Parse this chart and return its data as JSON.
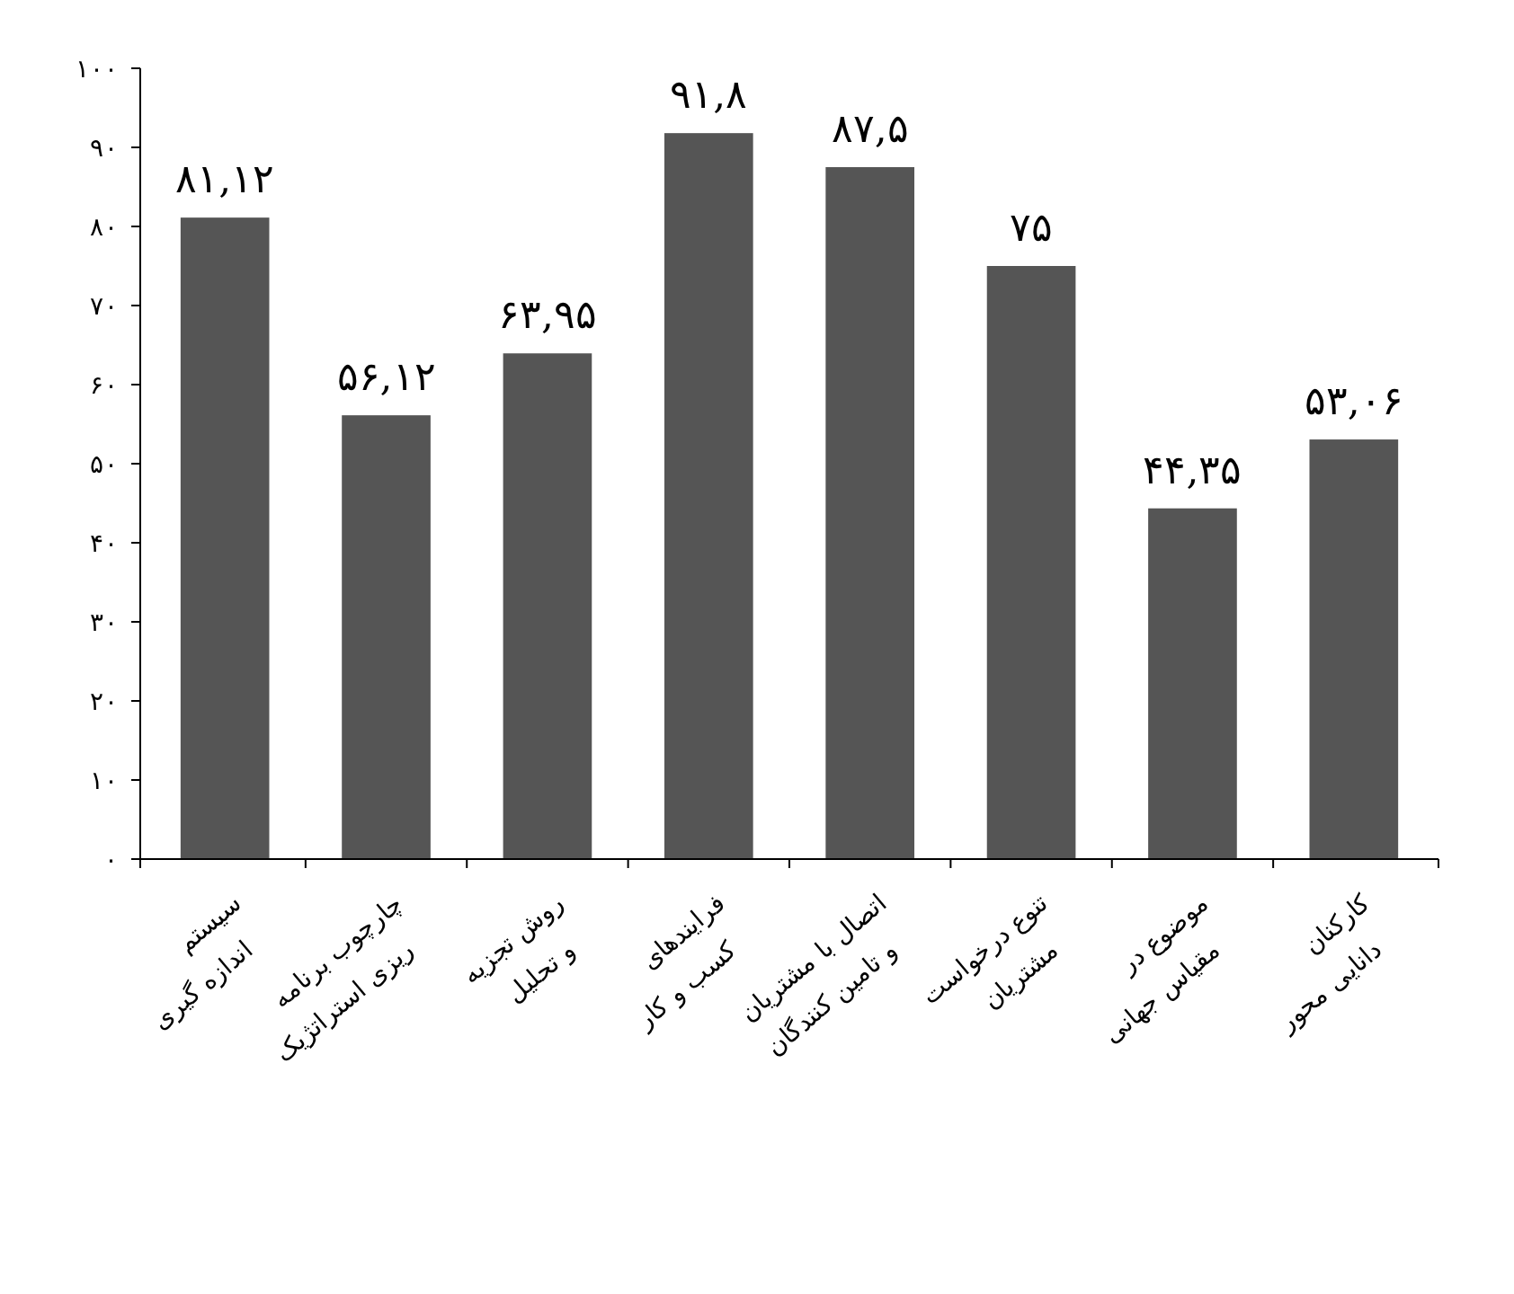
{
  "chart_data": {
    "type": "bar",
    "categories": [
      "سیستم اندازه گیری",
      "چارچوب برنامه ریزی استراتژیک",
      "روش تجزیه و تحلیل",
      "فرایندهای کسب و کار",
      "اتصال با مشتریان و تامین کنندگان",
      "تنوع درخواست مشتریان",
      "موضوع در مقیاس جهانی",
      "کارکنان دانایی محور"
    ],
    "values": [
      81.12,
      56.12,
      63.95,
      91.8,
      87.5,
      75,
      44.35,
      53.06
    ],
    "value_labels": [
      "۸۱,۱۲",
      "۵۶,۱۲",
      "۶۳,۹۵",
      "۹۱,۸",
      "۸۷,۵",
      "۷۵",
      "۴۴,۳۵",
      "۵۳,۰۶"
    ],
    "color": "#555555",
    "ylim": [
      0,
      100
    ],
    "yticks": [
      {
        "value": 0,
        "label": "۰"
      },
      {
        "value": 10,
        "label": "۱۰"
      },
      {
        "value": 20,
        "label": "۲۰"
      },
      {
        "value": 30,
        "label": "۳۰"
      },
      {
        "value": 40,
        "label": "۴۰"
      },
      {
        "value": 50,
        "label": "۵۰"
      },
      {
        "value": 60,
        "label": "۶۰"
      },
      {
        "value": 70,
        "label": "۷۰"
      },
      {
        "value": 80,
        "label": "۸۰"
      },
      {
        "value": 90,
        "label": "۹۰"
      },
      {
        "value": 100,
        "label": "۱۰۰"
      }
    ],
    "grid": false
  }
}
